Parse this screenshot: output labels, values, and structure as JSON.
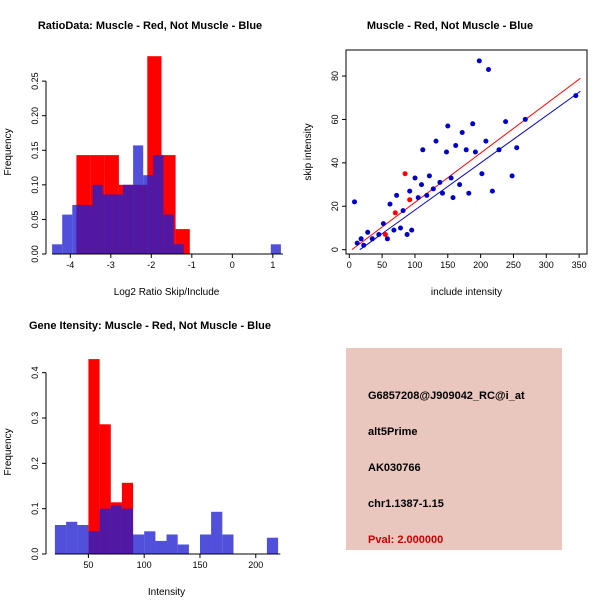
{
  "charts": [
    {
      "type": "histogram",
      "title": "RatioData: Muscle - Red, Not Muscle - Blue",
      "xlabel": "Log2 Ratio Skip/Include",
      "ylabel": "Frequency",
      "xlim": [
        -4.6,
        1.35
      ],
      "ylim": [
        0,
        0.295
      ],
      "xticks": [
        -4,
        -3,
        -2,
        -1,
        0,
        1
      ],
      "xtick_labels": [
        "-4",
        "-3",
        "-2",
        "-1",
        "0",
        "1"
      ],
      "yticks": [
        0.0,
        0.05,
        0.1,
        0.15,
        0.2,
        0.25
      ],
      "ytick_labels": [
        "0.00",
        "0.05",
        "0.10",
        "0.15",
        "0.20",
        "0.25"
      ],
      "xaxis_span": [
        -4.45,
        1.25
      ],
      "series": [
        {
          "name": "muscle-red",
          "color": "#FF0000",
          "alpha": 1,
          "bins": [
            [
              -3.85,
              -3.5,
              0.143
            ],
            [
              -3.5,
              -3.15,
              0.143
            ],
            [
              -3.15,
              -2.8,
              0.143
            ],
            [
              -2.8,
              -2.45,
              0.1
            ],
            [
              -2.45,
              -2.1,
              0.1
            ],
            [
              -2.1,
              -1.75,
              0.286
            ],
            [
              -1.75,
              -1.4,
              0.143
            ],
            [
              -1.4,
              -1.05,
              0.036
            ]
          ]
        },
        {
          "name": "not-muscle-blue",
          "color": "#1F1FD1",
          "alpha": 0.78,
          "bins": [
            [
              -4.45,
              -4.2,
              0.014
            ],
            [
              -4.2,
              -3.95,
              0.057
            ],
            [
              -3.95,
              -3.7,
              0.071
            ],
            [
              -3.7,
              -3.45,
              0.071
            ],
            [
              -3.45,
              -3.2,
              0.1
            ],
            [
              -3.2,
              -2.95,
              0.086
            ],
            [
              -2.95,
              -2.7,
              0.086
            ],
            [
              -2.7,
              -2.45,
              0.1
            ],
            [
              -2.45,
              -2.2,
              0.157
            ],
            [
              -2.2,
              -1.95,
              0.114
            ],
            [
              -1.95,
              -1.7,
              0.143
            ],
            [
              -1.7,
              -1.45,
              0.057
            ],
            [
              -1.45,
              -1.2,
              0.014
            ],
            [
              0.95,
              1.2,
              0.014
            ]
          ]
        }
      ]
    },
    {
      "type": "scatter",
      "title": "Muscle - Red, Not Muscle - Blue",
      "xlabel": "include intensity",
      "ylabel": "skip intensity",
      "xlim": [
        -5,
        362
      ],
      "ylim": [
        -2,
        92
      ],
      "xticks": [
        0,
        50,
        100,
        150,
        200,
        250,
        300,
        350
      ],
      "xtick_labels": [
        "0",
        "50",
        "100",
        "150",
        "200",
        "250",
        "300",
        "350"
      ],
      "yticks": [
        0,
        20,
        40,
        60,
        80
      ],
      "ytick_labels": [
        "0",
        "20",
        "40",
        "60",
        "80"
      ],
      "lines": [
        {
          "name": "muscle-fit",
          "color": "#FF0000",
          "from": [
            4,
            0
          ],
          "to": [
            352,
            79
          ]
        },
        {
          "name": "not-muscle-fit",
          "color": "#0000CD",
          "from": [
            16,
            0
          ],
          "to": [
            352,
            73
          ]
        }
      ],
      "series": [
        {
          "name": "not-muscle-points",
          "color": "#0000CD",
          "points": [
            [
              8,
              22
            ],
            [
              12,
              3
            ],
            [
              18,
              5
            ],
            [
              22,
              2
            ],
            [
              28,
              8
            ],
            [
              35,
              5
            ],
            [
              45,
              7
            ],
            [
              52,
              12
            ],
            [
              58,
              5
            ],
            [
              62,
              21
            ],
            [
              68,
              9
            ],
            [
              72,
              25
            ],
            [
              78,
              10
            ],
            [
              82,
              18
            ],
            [
              88,
              7
            ],
            [
              92,
              27
            ],
            [
              95,
              9
            ],
            [
              100,
              33
            ],
            [
              105,
              24
            ],
            [
              110,
              30
            ],
            [
              112,
              46
            ],
            [
              118,
              25
            ],
            [
              122,
              34
            ],
            [
              128,
              28
            ],
            [
              132,
              50
            ],
            [
              138,
              31
            ],
            [
              142,
              26
            ],
            [
              148,
              45
            ],
            [
              150,
              57
            ],
            [
              155,
              33
            ],
            [
              158,
              24
            ],
            [
              162,
              48
            ],
            [
              168,
              30
            ],
            [
              172,
              54
            ],
            [
              178,
              46
            ],
            [
              182,
              26
            ],
            [
              188,
              58
            ],
            [
              192,
              45
            ],
            [
              198,
              87
            ],
            [
              202,
              35
            ],
            [
              208,
              50
            ],
            [
              212,
              83
            ],
            [
              218,
              27
            ],
            [
              228,
              46
            ],
            [
              238,
              59
            ],
            [
              248,
              34
            ],
            [
              255,
              47
            ],
            [
              268,
              60
            ],
            [
              345,
              71
            ]
          ]
        },
        {
          "name": "muscle-points",
          "color": "#FF0000",
          "points": [
            [
              55,
              7
            ],
            [
              70,
              17
            ],
            [
              85,
              35
            ],
            [
              92,
              23
            ]
          ]
        }
      ]
    },
    {
      "type": "histogram",
      "title": "Gene Itensity: Muscle - Red, Not Muscle - Blue",
      "xlabel": "Intensity",
      "ylabel": "Frequency",
      "xlim": [
        12,
        228
      ],
      "ylim": [
        0,
        0.45
      ],
      "xticks": [
        50,
        100,
        150,
        200
      ],
      "xtick_labels": [
        "50",
        "100",
        "150",
        "200"
      ],
      "yticks": [
        0.0,
        0.1,
        0.2,
        0.3,
        0.4
      ],
      "ytick_labels": [
        "0.0",
        "0.1",
        "0.2",
        "0.3",
        "0.4"
      ],
      "xaxis_span": [
        20,
        222
      ],
      "series": [
        {
          "name": "muscle-red",
          "color": "#FF0000",
          "alpha": 1,
          "bins": [
            [
              50,
              60,
              0.43
            ],
            [
              60,
              70,
              0.286
            ],
            [
              70,
              80,
              0.114
            ],
            [
              80,
              90,
              0.157
            ]
          ]
        },
        {
          "name": "not-muscle-blue",
          "color": "#1F1FD1",
          "alpha": 0.78,
          "bins": [
            [
              20,
              30,
              0.064
            ],
            [
              30,
              40,
              0.071
            ],
            [
              40,
              50,
              0.064
            ],
            [
              50,
              60,
              0.05
            ],
            [
              60,
              70,
              0.1
            ],
            [
              70,
              80,
              0.107
            ],
            [
              80,
              90,
              0.1
            ],
            [
              90,
              100,
              0.043
            ],
            [
              100,
              110,
              0.05
            ],
            [
              110,
              120,
              0.029
            ],
            [
              120,
              130,
              0.043
            ],
            [
              130,
              140,
              0.021
            ],
            [
              150,
              160,
              0.043
            ],
            [
              160,
              170,
              0.093
            ],
            [
              170,
              180,
              0.043
            ],
            [
              210,
              220,
              0.036
            ]
          ]
        }
      ]
    }
  ],
  "info_panel": {
    "bg": "#E9C6BE",
    "lines": [
      {
        "text": "G6857208@J909042_RC@i_at",
        "color": "#000000"
      },
      {
        "text": "alt5Prime",
        "color": "#000000"
      },
      {
        "text": "AK030766",
        "color": "#000000"
      },
      {
        "text": "chr1.1387-1.15",
        "color": "#000000"
      },
      {
        "text": "Pval: 2.000000",
        "color": "#CC0000"
      }
    ]
  }
}
